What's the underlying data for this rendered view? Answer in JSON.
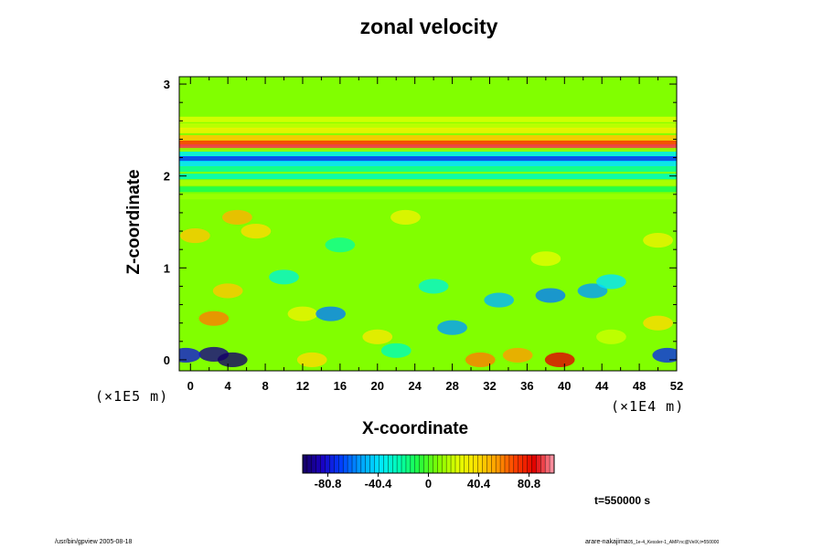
{
  "chart_data": {
    "type": "heatmap",
    "title": "zonal velocity",
    "xlabel": "X-coordinate",
    "ylabel": "Z-coordinate",
    "x_scale_note": "(×1E4 m)",
    "z_scale_note": "(×1E5 m)",
    "xlim": [
      -1.2,
      52
    ],
    "ylim": [
      -0.12,
      3.08
    ],
    "x_ticks": [
      0,
      4,
      8,
      12,
      16,
      20,
      24,
      28,
      32,
      36,
      40,
      44,
      48,
      52
    ],
    "y_ticks": [
      0,
      1,
      2,
      3
    ],
    "colorbar": {
      "min": -101,
      "max": 101,
      "ticks": [
        -80.8,
        -40.4,
        0,
        40.4,
        80.8
      ],
      "tick_labels": [
        "-80.8",
        "-40.4",
        "0",
        "40.4",
        "80.8"
      ],
      "colors": [
        "#140060",
        "#1a00c0",
        "#0040ff",
        "#00a0ff",
        "#00e8ff",
        "#00ffb0",
        "#20ff40",
        "#80ff00",
        "#e0ff00",
        "#ffe000",
        "#ffa000",
        "#ff4000",
        "#e00000",
        "#ffa0b0"
      ]
    },
    "bands": [
      {
        "z": 2.62,
        "value": 22
      },
      {
        "z": 2.55,
        "value": 18
      },
      {
        "z": 2.5,
        "value": 30
      },
      {
        "z": 2.42,
        "value": 45
      },
      {
        "z": 2.36,
        "value": 70
      },
      {
        "z": 2.32,
        "value": 92
      },
      {
        "z": 2.28,
        "value": 10
      },
      {
        "z": 2.24,
        "value": -35
      },
      {
        "z": 2.19,
        "value": -70
      },
      {
        "z": 2.14,
        "value": -40
      },
      {
        "z": 2.08,
        "value": -20
      },
      {
        "z": 2.0,
        "value": -25
      },
      {
        "z": 1.93,
        "value": 15
      },
      {
        "z": 1.86,
        "value": -10
      },
      {
        "z": 1.78,
        "value": 12
      }
    ],
    "anomalies": [
      {
        "x": 2.5,
        "z": 0.06,
        "value": -95
      },
      {
        "x": 4.5,
        "z": 0.0,
        "value": -100
      },
      {
        "x": -0.5,
        "z": 0.05,
        "value": -80
      },
      {
        "x": 51,
        "z": 0.05,
        "value": -75
      },
      {
        "x": 39.5,
        "z": 0.0,
        "value": 85
      },
      {
        "x": 31,
        "z": 0.0,
        "value": 60
      },
      {
        "x": 35,
        "z": 0.05,
        "value": 55
      },
      {
        "x": 13,
        "z": 0.0,
        "value": 40
      },
      {
        "x": 22,
        "z": 0.1,
        "value": -25
      },
      {
        "x": 2.5,
        "z": 0.45,
        "value": 60
      },
      {
        "x": 4.0,
        "z": 0.75,
        "value": 45
      },
      {
        "x": 12,
        "z": 0.5,
        "value": 30
      },
      {
        "x": 15,
        "z": 0.5,
        "value": -60
      },
      {
        "x": 28,
        "z": 0.35,
        "value": -55
      },
      {
        "x": 33,
        "z": 0.65,
        "value": -50
      },
      {
        "x": 38.5,
        "z": 0.7,
        "value": -60
      },
      {
        "x": 43,
        "z": 0.75,
        "value": -55
      },
      {
        "x": 45,
        "z": 0.85,
        "value": -40
      },
      {
        "x": 50,
        "z": 0.4,
        "value": 40
      },
      {
        "x": 20,
        "z": 0.25,
        "value": 35
      },
      {
        "x": 5,
        "z": 1.55,
        "value": 50
      },
      {
        "x": 7,
        "z": 1.4,
        "value": 40
      },
      {
        "x": 0.5,
        "z": 1.35,
        "value": 45
      },
      {
        "x": 16,
        "z": 1.25,
        "value": -20
      },
      {
        "x": 23,
        "z": 1.55,
        "value": 30
      },
      {
        "x": 38,
        "z": 1.1,
        "value": 25
      },
      {
        "x": 50,
        "z": 1.3,
        "value": 30
      },
      {
        "x": 10,
        "z": 0.9,
        "value": -30
      },
      {
        "x": 26,
        "z": 0.8,
        "value": -30
      },
      {
        "x": 45,
        "z": 0.25,
        "value": 20
      }
    ]
  },
  "footer": {
    "program_info": "/usr/bin/gpview 2005-08-18",
    "author": "arare-nakajima",
    "file_info": "05_1e-4_Kessler-1_AMP.nc@VelX,t=550000",
    "time_label": "t=550000 s"
  }
}
